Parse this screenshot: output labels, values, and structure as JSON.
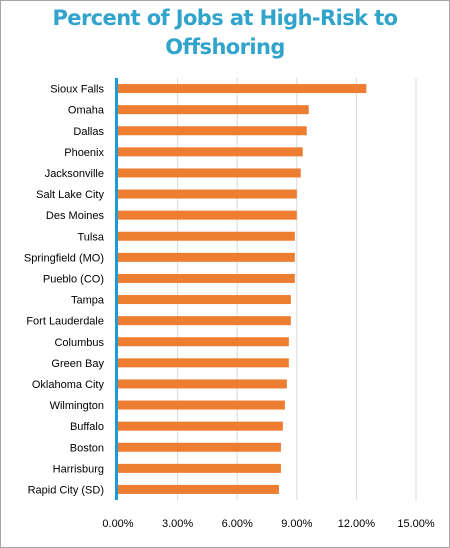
{
  "chart_data": {
    "type": "bar",
    "orientation": "horizontal",
    "title_lines": [
      "Percent of Jobs at High-Risk to",
      "Offshoring"
    ],
    "categories": [
      "Sioux Falls",
      "Omaha",
      "Dallas",
      "Phoenix",
      "Jacksonville",
      "Salt Lake City",
      "Des Moines",
      "Tulsa",
      "Springfield (MO)",
      "Pueblo (CO)",
      "Tampa",
      "Fort Lauderdale",
      "Columbus",
      "Green Bay",
      "Oklahoma City",
      "Wilmington",
      "Buffalo",
      "Boston",
      "Harrisburg",
      "Rapid City (SD)"
    ],
    "values": [
      12.5,
      9.6,
      9.5,
      9.3,
      9.2,
      9.0,
      9.0,
      8.9,
      8.9,
      8.9,
      8.7,
      8.7,
      8.6,
      8.6,
      8.5,
      8.4,
      8.3,
      8.2,
      8.2,
      8.1
    ],
    "xlim": [
      0,
      15
    ],
    "xticks": [
      "0.00%",
      "3.00%",
      "6.00%",
      "9.00%",
      "12.00%",
      "15.00%"
    ],
    "xtick_values": [
      0,
      3,
      6,
      9,
      12,
      15
    ],
    "grid": "vertical",
    "bar_color": "#ed7d31",
    "axis_color": "#1e9bd7",
    "grid_color": "#d9d9d9",
    "title_color": "#31a4cc"
  }
}
